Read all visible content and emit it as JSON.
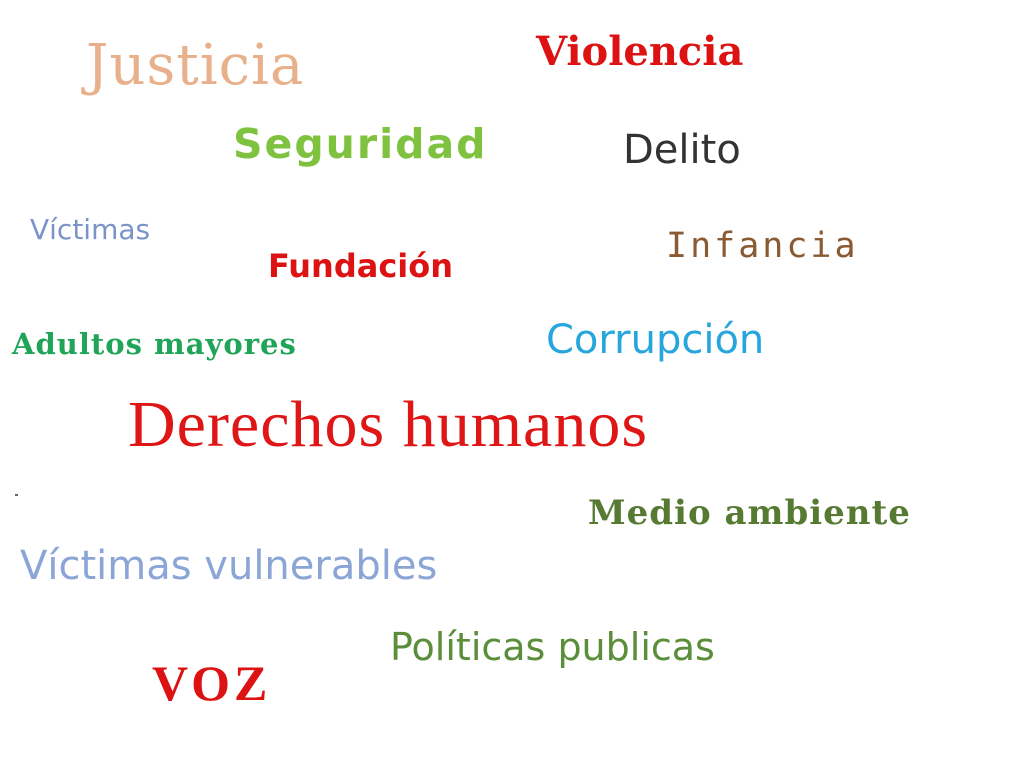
{
  "words": [
    {
      "text": "Justicia",
      "color": "#e9b08c"
    },
    {
      "text": "Violencia",
      "color": "#dd1212"
    },
    {
      "text": "Seguridad",
      "color": "#7fc23f"
    },
    {
      "text": "Delito",
      "color": "#333333"
    },
    {
      "text": "Víctimas",
      "color": "#7b93c9"
    },
    {
      "text": "Infancia",
      "color": "#8a5a32"
    },
    {
      "text": "Fundación",
      "color": "#dd1212"
    },
    {
      "text": "Adultos mayores",
      "color": "#20a558"
    },
    {
      "text": "Corrupción",
      "color": "#27a6dd"
    },
    {
      "text": "Derechos humanos",
      "color": "#df1616"
    },
    {
      "text": "Medio ambiente",
      "color": "#567a32"
    },
    {
      "text": "Víctimas vulnerables",
      "color": "#8ba6d6"
    },
    {
      "text": "Políticas publicas",
      "color": "#5b8e3a"
    },
    {
      "text": "VOZ",
      "color": "#dd1212"
    }
  ]
}
